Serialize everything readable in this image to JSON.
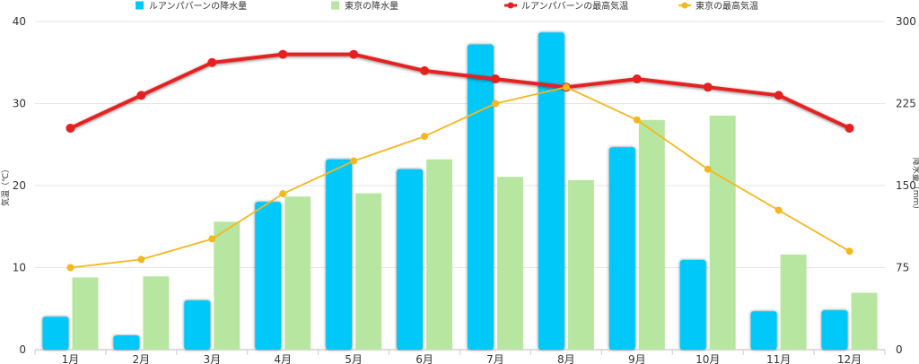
{
  "chart_data": {
    "type": "bar",
    "categories": [
      "1月",
      "2月",
      "3月",
      "4月",
      "5月",
      "6月",
      "7月",
      "8月",
      "9月",
      "10月",
      "11月",
      "12月"
    ],
    "series": [
      {
        "name": "ルアンパバーンの降水量",
        "type": "bar",
        "axis": "right",
        "color": "#00c8f8",
        "values": [
          30,
          13,
          45,
          135,
          174,
          165,
          279,
          290,
          185,
          82,
          35,
          36
        ]
      },
      {
        "name": "東京の降水量",
        "type": "bar",
        "axis": "right",
        "color": "#b7e6a0",
        "values": [
          66,
          67,
          117,
          140,
          143,
          174,
          158,
          155,
          210,
          214,
          87,
          52
        ]
      },
      {
        "name": "ルアンパバーンの最高気温",
        "type": "line",
        "axis": "left",
        "color": "#e52020",
        "values": [
          27,
          31,
          35,
          36,
          36,
          34,
          33,
          32,
          33,
          32,
          31,
          27
        ]
      },
      {
        "name": "東京の最高気温",
        "type": "line",
        "axis": "left",
        "color": "#f5b720",
        "values": [
          10,
          11,
          13.5,
          19,
          23,
          26,
          30,
          32,
          28,
          22,
          17,
          12
        ]
      }
    ],
    "ylabel_left": "気温（℃）",
    "ylabel_right": "降水量（mm）",
    "ylim_left": [
      0,
      40
    ],
    "yticks_left": [
      "0",
      "10",
      "20",
      "30",
      "40"
    ],
    "ylim_right": [
      0,
      300
    ],
    "yticks_right": [
      "0",
      "75",
      "150",
      "225",
      "300"
    ],
    "grid": true,
    "legend_position": "top"
  }
}
